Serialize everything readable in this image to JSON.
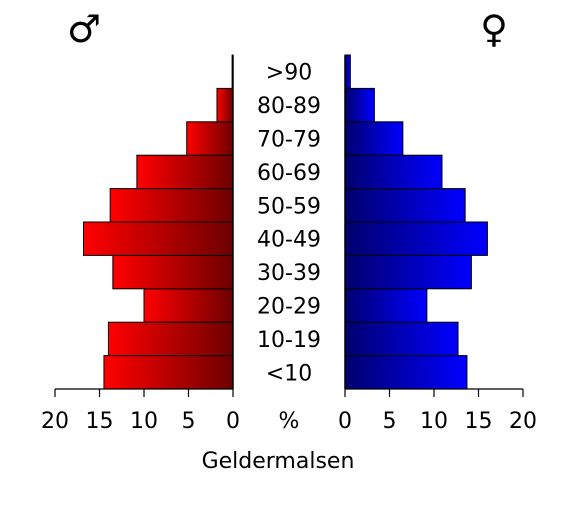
{
  "chart_data": {
    "type": "bar",
    "title": "Geldermalsen",
    "categories": [
      "<10",
      "10-19",
      "20-29",
      "30-39",
      "40-49",
      "50-59",
      "60-69",
      "70-79",
      "80-89",
      ">90"
    ],
    "series": [
      {
        "name": "♂",
        "side": "left",
        "values": [
          14.5,
          14.0,
          10.0,
          13.5,
          16.8,
          13.8,
          10.8,
          5.2,
          1.8,
          0.1
        ]
      },
      {
        "name": "♀",
        "side": "right",
        "values": [
          13.7,
          12.7,
          9.2,
          14.2,
          16.0,
          13.5,
          10.9,
          6.5,
          3.3,
          0.6
        ]
      }
    ],
    "xlim": [
      0,
      20
    ],
    "left_ticks": [
      "20",
      "15",
      "10",
      "5",
      "0"
    ],
    "right_ticks": [
      "0",
      "5",
      "10",
      "15",
      "20"
    ],
    "tick_values": [
      20,
      15,
      10,
      5,
      0
    ],
    "right_tick_values": [
      0,
      5,
      10,
      15,
      20
    ],
    "unit_label": "%",
    "colors": {
      "male_light": "#ff0000",
      "male_dark": "#6e0000",
      "female_light": "#0000ff",
      "female_dark": "#00006e",
      "stroke": "#000000"
    }
  }
}
